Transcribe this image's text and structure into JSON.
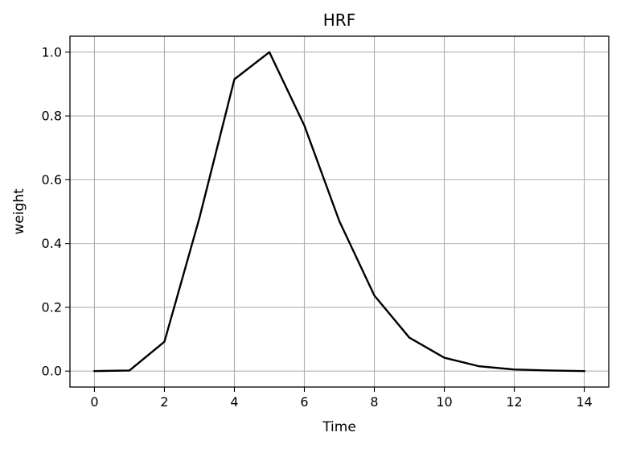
{
  "chart_data": {
    "type": "line",
    "title": "HRF",
    "xlabel": "Time",
    "ylabel": "weight",
    "xlim": [
      -0.7,
      14.7
    ],
    "ylim": [
      -0.05,
      1.05
    ],
    "xticks": [
      "0",
      "2",
      "4",
      "6",
      "8",
      "10",
      "12",
      "14"
    ],
    "yticks": [
      "0.0",
      "0.2",
      "0.4",
      "0.6",
      "0.8",
      "1.0"
    ],
    "grid": true,
    "series": [
      {
        "color": "#000000",
        "x": [
          0,
          1,
          2,
          3,
          4,
          5,
          6,
          7,
          8,
          9,
          10,
          11,
          12,
          13,
          14
        ],
        "values": [
          0.0,
          0.002,
          0.092,
          0.48,
          0.915,
          1.0,
          0.77,
          0.47,
          0.237,
          0.105,
          0.042,
          0.015,
          0.005,
          0.002,
          0.0
        ]
      }
    ]
  }
}
